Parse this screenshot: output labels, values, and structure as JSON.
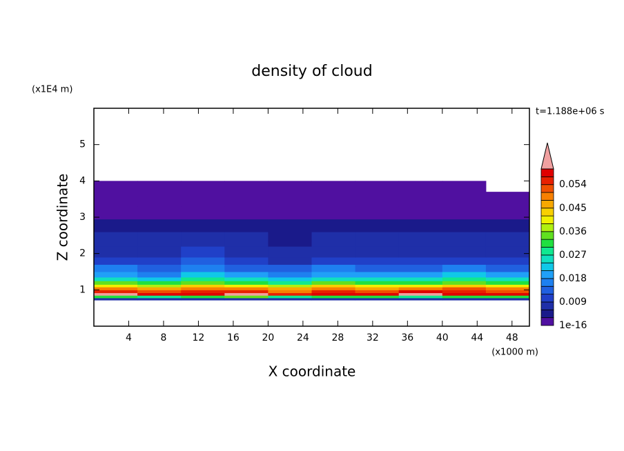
{
  "chart_data": {
    "type": "contour",
    "title": "density of cloud",
    "time_label": "t=1.188e+06 s",
    "x_label": "X coordinate",
    "x_unit": "(x1000 m)",
    "y_label": "Z coordinate",
    "y_unit": "(x1E4 m)",
    "xlim": [
      0,
      50
    ],
    "xticks": [
      4,
      8,
      12,
      16,
      20,
      24,
      28,
      32,
      36,
      40,
      44,
      48
    ],
    "ylim": [
      0,
      6
    ],
    "yticks": [
      1,
      2,
      3,
      4,
      5
    ],
    "x": [
      0,
      5,
      10,
      15,
      20,
      25,
      30,
      35,
      40,
      45,
      50
    ],
    "z": [
      0.72,
      0.78,
      0.85,
      0.92,
      1.0,
      1.08,
      1.15,
      1.25,
      1.35,
      1.5,
      1.7,
      1.9,
      2.2,
      2.6,
      2.95,
      3.3,
      3.7,
      4.0
    ],
    "values": [
      [
        0.006,
        0.008,
        0.007,
        0.006,
        0.008,
        0.007,
        0.006,
        0.008,
        0.007,
        0.006
      ],
      [
        0.03,
        0.027,
        0.031,
        0.033,
        0.028,
        0.03,
        0.032,
        0.029,
        0.03,
        0.031
      ],
      [
        0.062,
        0.057,
        0.058,
        0.061,
        0.056,
        0.058,
        0.057,
        0.062,
        0.059,
        0.058
      ],
      [
        0.055,
        0.052,
        0.056,
        0.054,
        0.05,
        0.055,
        0.053,
        0.057,
        0.054,
        0.052
      ],
      [
        0.049,
        0.046,
        0.05,
        0.048,
        0.045,
        0.05,
        0.047,
        0.049,
        0.051,
        0.048
      ],
      [
        0.041,
        0.038,
        0.043,
        0.04,
        0.037,
        0.042,
        0.039,
        0.041,
        0.044,
        0.04
      ],
      [
        0.033,
        0.03,
        0.034,
        0.032,
        0.029,
        0.033,
        0.031,
        0.032,
        0.035,
        0.031
      ],
      [
        0.026,
        0.023,
        0.027,
        0.025,
        0.022,
        0.026,
        0.024,
        0.025,
        0.027,
        0.024
      ],
      [
        0.02,
        0.017,
        0.021,
        0.019,
        0.016,
        0.02,
        0.018,
        0.019,
        0.021,
        0.018
      ],
      [
        0.015,
        0.013,
        0.016,
        0.014,
        0.012,
        0.015,
        0.014,
        0.014,
        0.016,
        0.013
      ],
      [
        0.011,
        0.009,
        0.012,
        0.01,
        0.008,
        0.011,
        0.01,
        0.01,
        0.011,
        0.009
      ],
      [
        0.008,
        0.007,
        0.009,
        0.008,
        0.006,
        0.008,
        0.007,
        0.008,
        0.008,
        0.007
      ],
      [
        0.007,
        0.006,
        0.007,
        0.006,
        0.005,
        0.007,
        0.006,
        0.006,
        0.007,
        0.006
      ],
      [
        0.004,
        0.005,
        0.004,
        0.005,
        0.004,
        0.005,
        0.004,
        0.005,
        0.004,
        0.005
      ],
      [
        0.002,
        0.002,
        0.002,
        0.002,
        0.002,
        0.002,
        0.002,
        0.002,
        0.002,
        0.002
      ],
      [
        0.001,
        0.001,
        0.001,
        0.001,
        0.001,
        0.001,
        0.001,
        0.001,
        0.001,
        0.001
      ],
      [
        0.0005,
        0.0005,
        0.0005,
        0.0005,
        0.0005,
        0.0005,
        0.0005,
        0.0005,
        0.0005,
        null
      ]
    ],
    "colorbar": {
      "clim": [
        1e-16,
        0.06
      ],
      "levels": [
        1e-16,
        0.003,
        0.006,
        0.009,
        0.012,
        0.015,
        0.018,
        0.021,
        0.024,
        0.027,
        0.03,
        0.033,
        0.036,
        0.039,
        0.042,
        0.045,
        0.048,
        0.051,
        0.054,
        0.057,
        0.06
      ],
      "ticks": [
        1e-16,
        0.009,
        0.018,
        0.027,
        0.036,
        0.045,
        0.054
      ],
      "colors": [
        "#5010a0",
        "#1a1a8a",
        "#1f2fa8",
        "#2040c8",
        "#2060e0",
        "#1e80f0",
        "#20a0f8",
        "#10c8e8",
        "#10e0c0",
        "#10e890",
        "#20e040",
        "#60e020",
        "#b0f010",
        "#f0f000",
        "#f8d000",
        "#f8a800",
        "#f88000",
        "#f05000",
        "#e82000",
        "#e00000"
      ],
      "extend_color": "#f0a0a0"
    }
  }
}
